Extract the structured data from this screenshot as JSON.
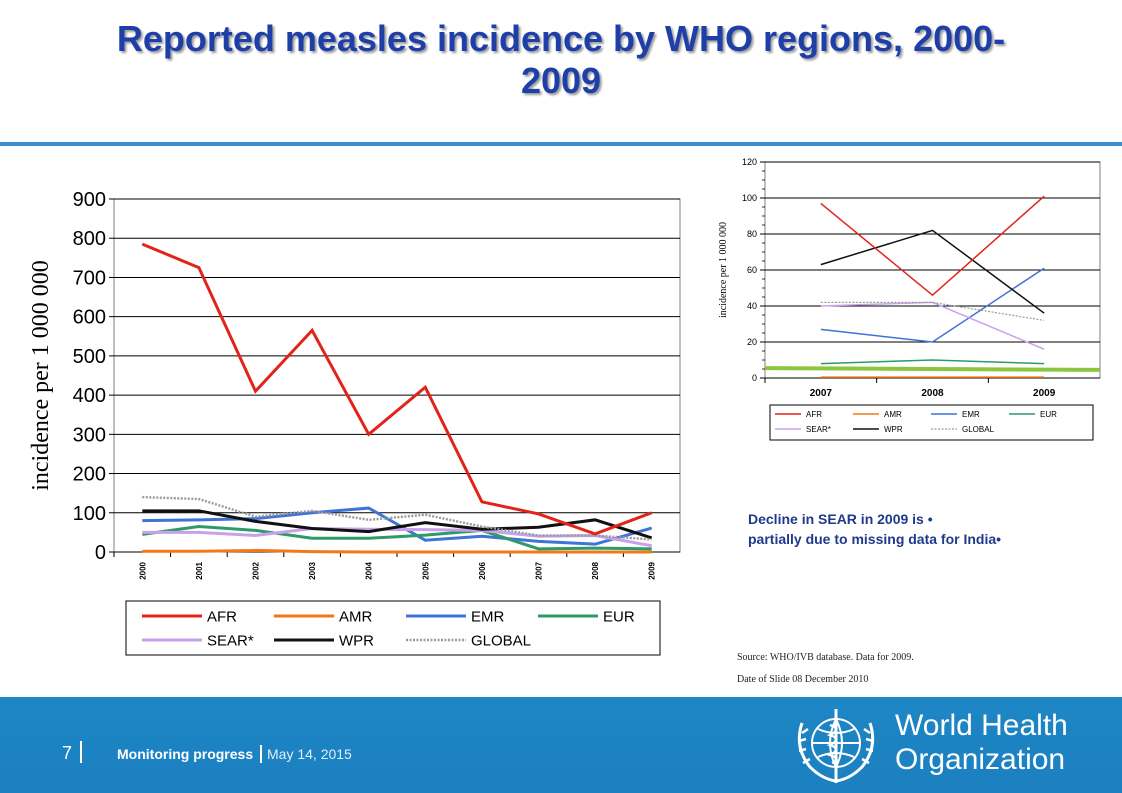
{
  "header": {
    "title_line1": "Reported measles incidence by WHO regions, 2000-",
    "title_line2": "2009"
  },
  "note": {
    "line1": "Decline  in SEAR in 2009  is •",
    "line2": "partially due to missing data for  India•"
  },
  "source": {
    "line1": "Source: WHO/IVB database. Data for 2009.",
    "line2": "Date of Slide  08 December 2010"
  },
  "footer": {
    "page_number": "7",
    "section": "Monitoring progress",
    "date": "May 14, 2015",
    "org_line1": "World Health",
    "org_line2": "Organization"
  },
  "colors": {
    "AFR": "#e2231a",
    "AMR": "#f07a1a",
    "EMR": "#3f73d6",
    "EUR": "#2e9a68",
    "SEAR": "#c8a2e8",
    "WPR": "#111111",
    "GLOBAL": "#9a9a9a",
    "title": "#1f3fa8",
    "footer": "#1e87c6"
  },
  "chart_data": [
    {
      "type": "line",
      "ylabel": "incidence per 1 000 000",
      "ylim": [
        0,
        900
      ],
      "yticks": [
        "0",
        "100",
        "200",
        "300",
        "400",
        "500",
        "600",
        "700",
        "800",
        "900"
      ],
      "categories": [
        "2000",
        "2001",
        "2002",
        "2003",
        "2004",
        "2005",
        "2006",
        "2007",
        "2008",
        "2009"
      ],
      "grid": true,
      "legend": "bottom",
      "series": [
        {
          "name": "AFR",
          "values": [
            785,
            725,
            410,
            565,
            300,
            420,
            128,
            97,
            46,
            100
          ]
        },
        {
          "name": "AMR",
          "values": [
            2,
            2,
            4,
            1,
            0,
            0,
            0,
            0,
            0,
            0
          ]
        },
        {
          "name": "EMR",
          "values": [
            80,
            82,
            85,
            100,
            112,
            30,
            40,
            27,
            20,
            61
          ]
        },
        {
          "name": "EUR",
          "values": [
            45,
            65,
            55,
            35,
            35,
            43,
            55,
            8,
            10,
            8
          ]
        },
        {
          "name": "SEAR*",
          "values": [
            50,
            50,
            42,
            60,
            58,
            57,
            55,
            40,
            42,
            16
          ]
        },
        {
          "name": "WPR",
          "values": [
            105,
            105,
            78,
            60,
            52,
            75,
            58,
            63,
            82,
            36
          ]
        },
        {
          "name": "GLOBAL",
          "values": [
            140,
            135,
            90,
            105,
            82,
            95,
            65,
            42,
            42,
            32
          ]
        }
      ]
    },
    {
      "type": "line",
      "ylabel": "incidence per 1 000 000",
      "ylim": [
        0,
        120
      ],
      "yticks": [
        "0",
        "20",
        "40",
        "60",
        "80",
        "100",
        "120"
      ],
      "categories": [
        "2007",
        "2008",
        "2009"
      ],
      "grid": true,
      "legend": "bottom",
      "series": [
        {
          "name": "AFR",
          "values": [
            97,
            46,
            101
          ]
        },
        {
          "name": "AMR",
          "values": [
            0.5,
            0.5,
            0.5
          ]
        },
        {
          "name": "EMR",
          "values": [
            27,
            20,
            61
          ]
        },
        {
          "name": "EUR",
          "values": [
            8,
            10,
            8
          ]
        },
        {
          "name": "SEAR*",
          "values": [
            40,
            42,
            16
          ]
        },
        {
          "name": "WPR",
          "values": [
            63,
            82,
            36
          ]
        },
        {
          "name": "GLOBAL",
          "values": [
            42,
            42,
            32
          ]
        }
      ]
    }
  ]
}
